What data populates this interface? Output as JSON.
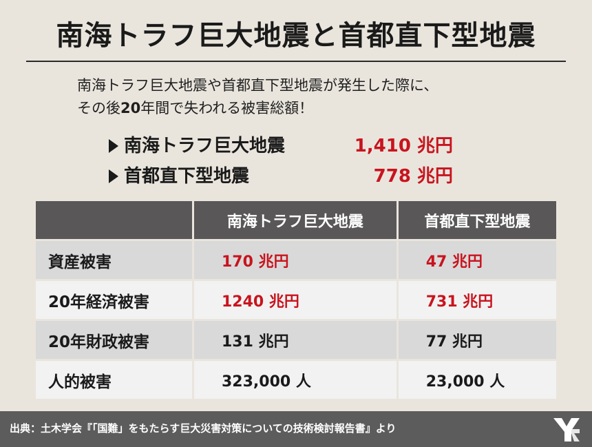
{
  "title": "南海トラフ巨大地震と首都直下型地震",
  "intro": {
    "line1": "南海トラフ巨大地震や首都直下型地震が発生した際に、",
    "line2_pre": "その後",
    "line2_num": "20",
    "line2_post": "年間で失われる被害総額！"
  },
  "summary": [
    {
      "label": "南海トラフ巨大地震",
      "amount": "1,410 兆円"
    },
    {
      "label": "首都直下型地震",
      "amount": "778 兆円"
    }
  ],
  "table": {
    "headers": [
      "",
      "南海トラフ巨大地震",
      "首都直下型地震"
    ],
    "rows": [
      {
        "label": "資産被害",
        "nankai": "170 兆円",
        "shuto": "47 兆円"
      },
      {
        "label": "20年経済被害",
        "nankai": "1240 兆円",
        "shuto": "731 兆円"
      },
      {
        "label": "20年財政被害",
        "nankai": "131 兆円",
        "shuto": "77 兆円"
      },
      {
        "label": "人的被害",
        "nankai": "323,000 人",
        "shuto": "23,000 人"
      }
    ]
  },
  "colors": {
    "accent_red": "#c8141e",
    "header_gray": "#595757",
    "background": "#e9e5dd"
  },
  "footer": {
    "source": "出典：土木学会『「国難」をもたらす巨大災害対策についての技術検討報告書』より",
    "logo_icon": "brand-logo-icon"
  }
}
